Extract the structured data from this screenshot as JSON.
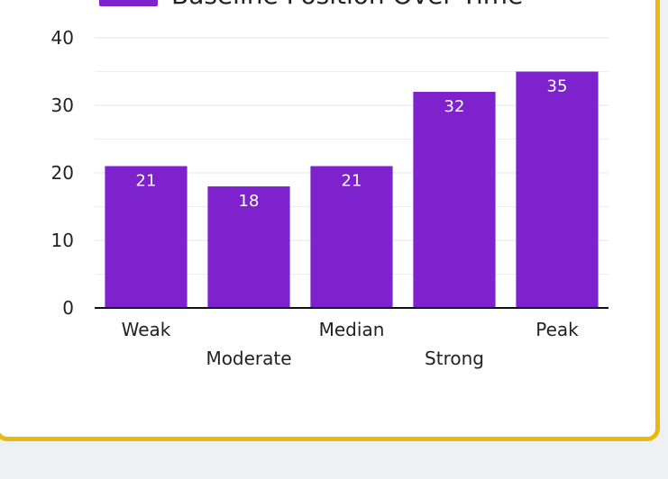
{
  "chart_data": {
    "type": "bar",
    "legend": "Baseline Position Over Time",
    "categories": [
      "Weak",
      "Moderate",
      "Median",
      "Strong",
      "Peak"
    ],
    "values": [
      21,
      18,
      21,
      32,
      35
    ],
    "color": "#7e22ce",
    "ylim": [
      0,
      40
    ],
    "yticks": [
      0,
      10,
      20,
      30,
      40
    ],
    "grid": true
  }
}
